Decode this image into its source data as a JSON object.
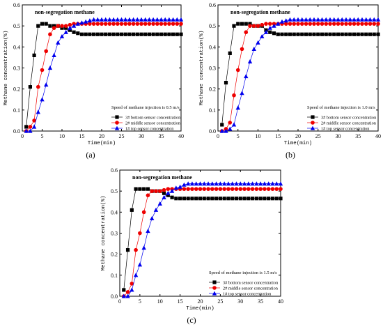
{
  "chart_data": [
    {
      "type": "line",
      "panel_label": "(a)",
      "title": "non-segregation methane",
      "annotation": "Speed of methane injection is 0.5 m/s",
      "xlabel": "Time(min)",
      "ylabel": "Methane concentration(%)",
      "xlim": [
        0,
        40
      ],
      "ylim": [
        0.0,
        0.6
      ],
      "xticks": [
        "0",
        "5",
        "10",
        "15",
        "20",
        "25",
        "30",
        "35",
        "40"
      ],
      "yticks": [
        "0.0",
        "0.1",
        "0.2",
        "0.3",
        "0.4",
        "0.5",
        "0.6"
      ],
      "legend_position": "bottom-right",
      "series": [
        {
          "name": "3# bottom sensor concentration",
          "marker": "square",
          "color": "#000000",
          "x": [
            1,
            2,
            3,
            4,
            5,
            6,
            7,
            8,
            9,
            10,
            11,
            12,
            13,
            14,
            15,
            16,
            17,
            18,
            19,
            20,
            21,
            22,
            23,
            24,
            25,
            26,
            27,
            28,
            29,
            30,
            31,
            32,
            33,
            34,
            35,
            36,
            37,
            38,
            39,
            40
          ],
          "y": [
            0.02,
            0.21,
            0.36,
            0.5,
            0.51,
            0.51,
            0.5,
            0.5,
            0.5,
            0.49,
            0.49,
            0.48,
            0.47,
            0.465,
            0.46,
            0.46,
            0.46,
            0.46,
            0.46,
            0.46,
            0.46,
            0.46,
            0.46,
            0.46,
            0.46,
            0.46,
            0.46,
            0.46,
            0.46,
            0.46,
            0.46,
            0.46,
            0.46,
            0.46,
            0.46,
            0.46,
            0.46,
            0.46,
            0.46,
            0.46
          ]
        },
        {
          "name": "2# middle sensor concentration",
          "marker": "circle",
          "color": "#ee0000",
          "x": [
            1,
            2,
            3,
            4,
            5,
            6,
            7,
            8,
            9,
            10,
            11,
            12,
            13,
            14,
            15,
            16,
            17,
            18,
            19,
            20,
            21,
            22,
            23,
            24,
            25,
            26,
            27,
            28,
            29,
            30,
            31,
            32,
            33,
            34,
            35,
            36,
            37,
            38,
            39,
            40
          ],
          "y": [
            0.0,
            0.02,
            0.05,
            0.21,
            0.29,
            0.38,
            0.46,
            0.49,
            0.5,
            0.5,
            0.5,
            0.505,
            0.51,
            0.51,
            0.51,
            0.51,
            0.51,
            0.51,
            0.51,
            0.51,
            0.51,
            0.51,
            0.51,
            0.51,
            0.51,
            0.51,
            0.51,
            0.51,
            0.51,
            0.51,
            0.51,
            0.51,
            0.51,
            0.51,
            0.51,
            0.51,
            0.51,
            0.51,
            0.51,
            0.51
          ]
        },
        {
          "name": "1# top sensor concentration",
          "marker": "triangle",
          "color": "#0000ee",
          "x": [
            1,
            2,
            3,
            4,
            5,
            6,
            7,
            8,
            9,
            10,
            11,
            12,
            13,
            14,
            15,
            16,
            17,
            18,
            19,
            20,
            21,
            22,
            23,
            24,
            25,
            26,
            27,
            28,
            29,
            30,
            31,
            32,
            33,
            34,
            35,
            36,
            37,
            38,
            39,
            40
          ],
          "y": [
            0.0,
            0.0,
            0.02,
            0.09,
            0.15,
            0.22,
            0.3,
            0.36,
            0.42,
            0.45,
            0.47,
            0.49,
            0.5,
            0.51,
            0.515,
            0.52,
            0.525,
            0.53,
            0.53,
            0.53,
            0.53,
            0.53,
            0.53,
            0.53,
            0.53,
            0.53,
            0.53,
            0.53,
            0.53,
            0.53,
            0.53,
            0.53,
            0.53,
            0.53,
            0.53,
            0.53,
            0.53,
            0.53,
            0.53,
            0.53
          ]
        }
      ]
    },
    {
      "type": "line",
      "panel_label": "(b)",
      "title": "non-segregation methane",
      "annotation": "Speed of methane injection is 1.0 m/s",
      "xlabel": "Time(min)",
      "ylabel": "Methane concentration(%)",
      "xlim": [
        0,
        40
      ],
      "ylim": [
        0.0,
        0.6
      ],
      "xticks": [
        "0",
        "5",
        "10",
        "15",
        "20",
        "25",
        "30",
        "35",
        "40"
      ],
      "yticks": [
        "0.0",
        "0.1",
        "0.2",
        "0.3",
        "0.4",
        "0.5",
        "0.6"
      ],
      "legend_position": "bottom-right",
      "series": [
        {
          "name": "3# bottom sensor concentration",
          "marker": "square",
          "color": "#000000",
          "x": [
            1,
            2,
            3,
            4,
            5,
            6,
            7,
            8,
            9,
            10,
            11,
            12,
            13,
            14,
            15,
            16,
            17,
            18,
            19,
            20,
            21,
            22,
            23,
            24,
            25,
            26,
            27,
            28,
            29,
            30,
            31,
            32,
            33,
            34,
            35,
            36,
            37,
            38,
            39,
            40
          ],
          "y": [
            0.03,
            0.23,
            0.37,
            0.5,
            0.51,
            0.51,
            0.51,
            0.51,
            0.5,
            0.5,
            0.5,
            0.48,
            0.47,
            0.465,
            0.46,
            0.46,
            0.46,
            0.46,
            0.46,
            0.46,
            0.46,
            0.46,
            0.46,
            0.46,
            0.46,
            0.46,
            0.46,
            0.46,
            0.46,
            0.46,
            0.46,
            0.46,
            0.46,
            0.46,
            0.46,
            0.46,
            0.46,
            0.46,
            0.46,
            0.46
          ]
        },
        {
          "name": "2# middle sensor concentration",
          "marker": "circle",
          "color": "#ee0000",
          "x": [
            1,
            2,
            3,
            4,
            5,
            6,
            7,
            8,
            9,
            10,
            11,
            12,
            13,
            14,
            15,
            16,
            17,
            18,
            19,
            20,
            21,
            22,
            23,
            24,
            25,
            26,
            27,
            28,
            29,
            30,
            31,
            32,
            33,
            34,
            35,
            36,
            37,
            38,
            39,
            40
          ],
          "y": [
            0.0,
            0.01,
            0.04,
            0.17,
            0.29,
            0.39,
            0.47,
            0.5,
            0.5,
            0.5,
            0.505,
            0.51,
            0.51,
            0.51,
            0.51,
            0.51,
            0.51,
            0.51,
            0.51,
            0.51,
            0.51,
            0.51,
            0.51,
            0.51,
            0.51,
            0.51,
            0.51,
            0.51,
            0.51,
            0.51,
            0.51,
            0.51,
            0.51,
            0.51,
            0.51,
            0.51,
            0.51,
            0.51,
            0.51,
            0.51
          ]
        },
        {
          "name": "1# top sensor concentration",
          "marker": "triangle",
          "color": "#0000ee",
          "x": [
            1,
            2,
            3,
            4,
            5,
            6,
            7,
            8,
            9,
            10,
            11,
            12,
            13,
            14,
            15,
            16,
            17,
            18,
            19,
            20,
            21,
            22,
            23,
            24,
            25,
            26,
            27,
            28,
            29,
            30,
            31,
            32,
            33,
            34,
            35,
            36,
            37,
            38,
            39,
            40
          ],
          "y": [
            0.0,
            0.0,
            0.01,
            0.03,
            0.11,
            0.18,
            0.26,
            0.33,
            0.39,
            0.42,
            0.45,
            0.47,
            0.49,
            0.5,
            0.51,
            0.52,
            0.525,
            0.53,
            0.53,
            0.53,
            0.53,
            0.53,
            0.53,
            0.53,
            0.53,
            0.53,
            0.53,
            0.53,
            0.53,
            0.53,
            0.53,
            0.53,
            0.53,
            0.53,
            0.53,
            0.53,
            0.53,
            0.53,
            0.53,
            0.53
          ]
        }
      ]
    },
    {
      "type": "line",
      "panel_label": "(c)",
      "title": "non-segregation methane",
      "annotation": "Speed of methane injection is 1.5 m/s",
      "xlabel": "Time(min)",
      "ylabel": "Methane concentration(%)",
      "xlim": [
        0,
        40
      ],
      "ylim": [
        0.0,
        0.6
      ],
      "xticks": [
        "0",
        "5",
        "10",
        "15",
        "20",
        "25",
        "30",
        "35",
        "40"
      ],
      "yticks": [
        "0.0",
        "0.1",
        "0.2",
        "0.3",
        "0.4",
        "0.5",
        "0.6"
      ],
      "legend_position": "bottom-right",
      "series": [
        {
          "name": "3# bottom sensor concentration",
          "marker": "square",
          "color": "#000000",
          "x": [
            1,
            2,
            3,
            4,
            5,
            6,
            7,
            8,
            9,
            10,
            11,
            12,
            13,
            14,
            15,
            16,
            17,
            18,
            19,
            20,
            21,
            22,
            23,
            24,
            25,
            26,
            27,
            28,
            29,
            30,
            31,
            32,
            33,
            34,
            35,
            36,
            37,
            38,
            39,
            40
          ],
          "y": [
            0.03,
            0.22,
            0.41,
            0.51,
            0.51,
            0.51,
            0.51,
            0.5,
            0.5,
            0.5,
            0.49,
            0.48,
            0.47,
            0.465,
            0.465,
            0.465,
            0.465,
            0.465,
            0.465,
            0.465,
            0.465,
            0.465,
            0.465,
            0.465,
            0.465,
            0.465,
            0.465,
            0.465,
            0.465,
            0.465,
            0.465,
            0.465,
            0.465,
            0.465,
            0.465,
            0.465,
            0.465,
            0.465,
            0.465,
            0.465
          ]
        },
        {
          "name": "2# middle sensor concentration",
          "marker": "circle",
          "color": "#ee0000",
          "x": [
            1,
            2,
            3,
            4,
            5,
            6,
            7,
            8,
            9,
            10,
            11,
            12,
            13,
            14,
            15,
            16,
            17,
            18,
            19,
            20,
            21,
            22,
            23,
            24,
            25,
            26,
            27,
            28,
            29,
            30,
            31,
            32,
            33,
            34,
            35,
            36,
            37,
            38,
            39,
            40
          ],
          "y": [
            0.0,
            0.02,
            0.06,
            0.22,
            0.3,
            0.4,
            0.48,
            0.5,
            0.5,
            0.5,
            0.505,
            0.51,
            0.51,
            0.51,
            0.51,
            0.51,
            0.51,
            0.51,
            0.51,
            0.51,
            0.51,
            0.51,
            0.51,
            0.51,
            0.51,
            0.51,
            0.51,
            0.51,
            0.51,
            0.51,
            0.51,
            0.51,
            0.51,
            0.51,
            0.51,
            0.51,
            0.51,
            0.51,
            0.51,
            0.51
          ]
        },
        {
          "name": "1# top sensor concentration",
          "marker": "triangle",
          "color": "#0000ee",
          "x": [
            1,
            2,
            3,
            4,
            5,
            6,
            7,
            8,
            9,
            10,
            11,
            12,
            13,
            14,
            15,
            16,
            17,
            18,
            19,
            20,
            21,
            22,
            23,
            24,
            25,
            26,
            27,
            28,
            29,
            30,
            31,
            32,
            33,
            34,
            35,
            36,
            37,
            38,
            39,
            40
          ],
          "y": [
            0.0,
            0.0,
            0.03,
            0.1,
            0.15,
            0.23,
            0.31,
            0.37,
            0.41,
            0.44,
            0.47,
            0.49,
            0.5,
            0.515,
            0.52,
            0.53,
            0.535,
            0.535,
            0.535,
            0.535,
            0.535,
            0.535,
            0.535,
            0.535,
            0.535,
            0.535,
            0.535,
            0.535,
            0.535,
            0.535,
            0.535,
            0.535,
            0.535,
            0.535,
            0.535,
            0.535,
            0.535,
            0.535,
            0.535,
            0.535
          ]
        }
      ]
    }
  ]
}
